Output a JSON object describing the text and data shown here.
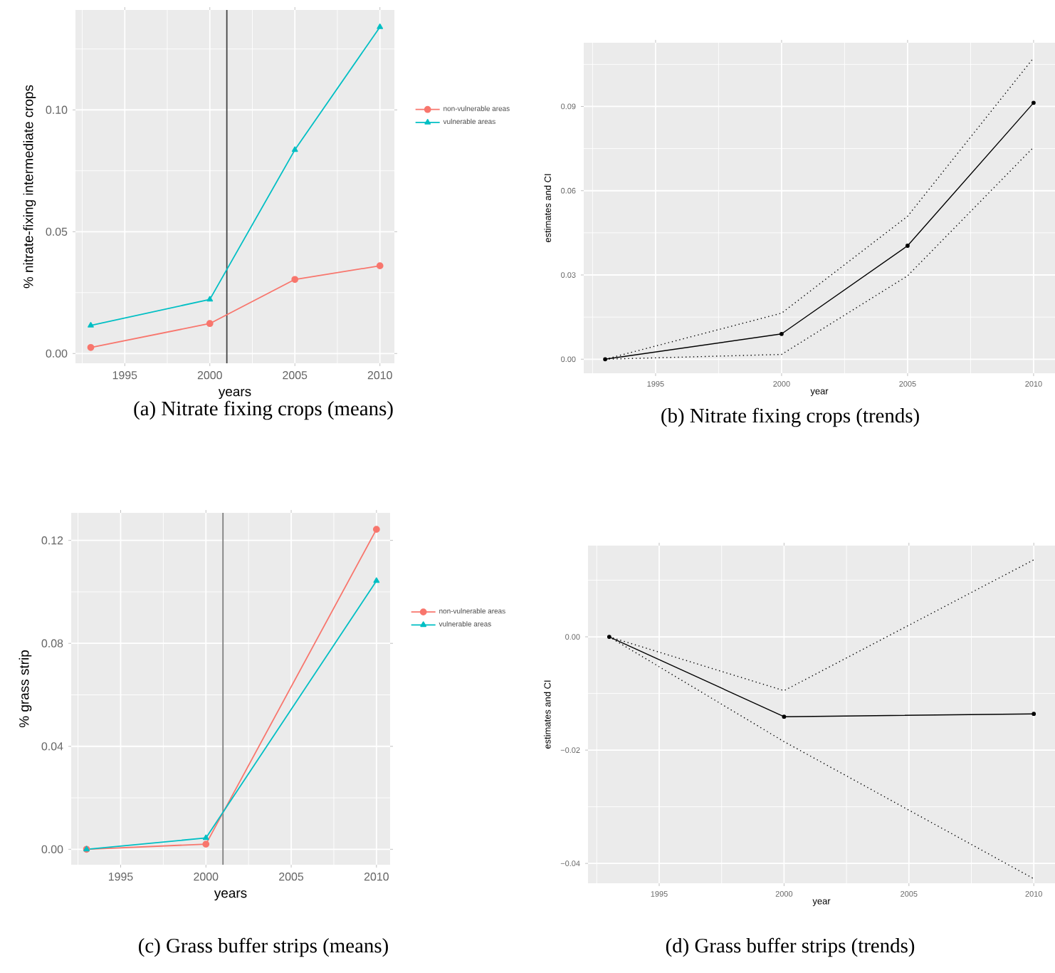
{
  "chart_data": [
    {
      "type": "line",
      "xlabel": "years",
      "ylabel": "% nitrate-fixing intermediate crops",
      "x": [
        1993,
        2000,
        2005,
        2010
      ],
      "series": [
        {
          "name": "non-vulnerable areas",
          "color": "#f8766d",
          "marker": "circle",
          "values": [
            0.0025,
            0.0123,
            0.0304,
            0.036
          ]
        },
        {
          "name": "vulnerable areas",
          "color": "#00bfc4",
          "marker": "triangle",
          "values": [
            0.0115,
            0.0222,
            0.0836,
            0.134
          ]
        }
      ],
      "xlim": [
        1992.1,
        2010.85
      ],
      "xticks": [
        1995,
        2000,
        2005,
        2010
      ],
      "ylim": [
        -0.004,
        0.141
      ],
      "yticks": [
        {
          "value": 0,
          "label": "0.00"
        },
        {
          "value": 0.05,
          "label": "0.05"
        },
        {
          "value": 0.1,
          "label": "0.10"
        }
      ],
      "grid": true,
      "legend": "right",
      "ref_lines": [
        {
          "axis": "x",
          "value": 2001,
          "color": "#444444"
        }
      ],
      "annotations": [
        "(a) Nitrate fixing crops (means)"
      ]
    },
    {
      "type": "line",
      "xlabel": "year",
      "ylabel": "estimates and CI",
      "x": [
        1993,
        2000,
        2005,
        2010
      ],
      "series": [
        {
          "color": "#000000",
          "marker": "circle",
          "line_style": "solid",
          "values": [
            0,
            0.009,
            0.0404,
            0.0913
          ]
        },
        {
          "color": "#000000",
          "marker": "none",
          "line_style": "dotted",
          "values": [
            0,
            0.0164,
            0.0509,
            0.1073
          ]
        },
        {
          "color": "#000000",
          "marker": "none",
          "line_style": "dotted",
          "values": [
            0,
            0.0017,
            0.0297,
            0.0755
          ]
        }
      ],
      "xlim": [
        1992.15,
        2010.85
      ],
      "xticks": [
        1995,
        2000,
        2005,
        2010
      ],
      "ylim": [
        -0.005,
        0.1127
      ],
      "yticks": [
        {
          "value": 0,
          "label": "0.00"
        },
        {
          "value": 0.03,
          "label": "0.03"
        },
        {
          "value": 0.06,
          "label": "0.06"
        },
        {
          "value": 0.09,
          "label": "0.09"
        }
      ],
      "grid": true,
      "annotations": [
        "(b) Nitrate fixing crops (trends)"
      ]
    },
    {
      "type": "line",
      "xlabel": "years",
      "ylabel": "% grass strip",
      "x": [
        1993,
        2000,
        2010
      ],
      "series": [
        {
          "name": "non-vulnerable areas",
          "color": "#f8766d",
          "marker": "circle",
          "values": [
            0,
            0.002,
            0.1243
          ]
        },
        {
          "name": "vulnerable areas",
          "color": "#00bfc4",
          "marker": "triangle",
          "values": [
            0,
            0.0044,
            0.1043
          ]
        }
      ],
      "xlim": [
        1992.1,
        2010.8
      ],
      "xticks": [
        1995,
        2000,
        2005,
        2010
      ],
      "ylim": [
        -0.006,
        0.1307
      ],
      "yticks": [
        {
          "value": 0,
          "label": "0.00"
        },
        {
          "value": 0.04,
          "label": "0.04"
        },
        {
          "value": 0.08,
          "label": "0.08"
        },
        {
          "value": 0.12,
          "label": "0.12"
        }
      ],
      "grid": true,
      "legend": "right",
      "ref_lines": [
        {
          "axis": "x",
          "value": 2001,
          "color": "#7f7f7f"
        }
      ],
      "annotations": [
        "(c) Grass buffer strips (means)"
      ]
    },
    {
      "type": "line",
      "xlabel": "year",
      "ylabel": "estimates and CI",
      "x": [
        1993,
        2000,
        2010
      ],
      "series": [
        {
          "color": "#000000",
          "marker": "circle",
          "line_style": "solid",
          "values": [
            0,
            -0.0141,
            -0.0136
          ]
        },
        {
          "color": "#000000",
          "marker": "none",
          "line_style": "dotted",
          "values": [
            0,
            -0.0095,
            0.0136
          ]
        },
        {
          "color": "#000000",
          "marker": "none",
          "line_style": "dotted",
          "values": [
            0,
            -0.0185,
            -0.0427
          ]
        }
      ],
      "xlim": [
        1992.15,
        2010.85
      ],
      "xticks": [
        1995,
        2000,
        2005,
        2010
      ],
      "ylim": [
        -0.0435,
        0.0161
      ],
      "yticks": [
        {
          "value": -0.04,
          "label": "−0.04"
        },
        {
          "value": -0.02,
          "label": "−0.02"
        },
        {
          "value": 0,
          "label": "0.00"
        }
      ],
      "grid": true,
      "annotations": [
        "(d) Grass buffer strips (trends)"
      ]
    }
  ]
}
